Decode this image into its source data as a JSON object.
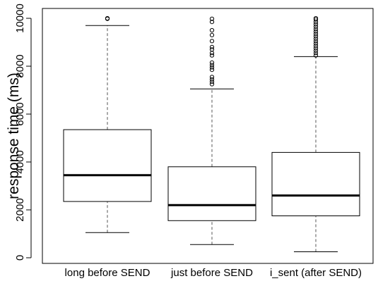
{
  "chart_data": {
    "type": "boxplot",
    "ylabel": "response time (ms)",
    "xlabel": "",
    "ylim": [
      0,
      10000
    ],
    "yticks": [
      0,
      2000,
      4000,
      6000,
      8000,
      10000
    ],
    "categories": [
      "long before SEND",
      "just before SEND",
      "i_sent (after SEND)"
    ],
    "boxes": [
      {
        "name": "long before SEND",
        "whisker_low": 1050,
        "q1": 2350,
        "median": 3450,
        "q3": 5350,
        "whisker_high": 9700,
        "outliers": [
          9980,
          10000
        ]
      },
      {
        "name": "just before SEND",
        "whisker_low": 550,
        "q1": 1550,
        "median": 2200,
        "q3": 3800,
        "whisker_high": 7050,
        "outliers": [
          7250,
          7350,
          7450,
          7550,
          7850,
          7950,
          8050,
          8150,
          8450,
          8550,
          8700,
          8800,
          9050,
          9300,
          9500,
          9850,
          9980
        ]
      },
      {
        "name": "i_sent (after SEND)",
        "whisker_low": 250,
        "q1": 1750,
        "median": 2600,
        "q3": 4400,
        "whisker_high": 8400,
        "outliers": [
          8450,
          8550,
          8650,
          8750,
          8850,
          8950,
          9050,
          9150,
          9250,
          9350,
          9450,
          9550,
          9650,
          9750,
          9850,
          9950,
          10000
        ]
      }
    ]
  },
  "colors": {
    "box_stroke": "#000000",
    "whisker_stroke": "#555555",
    "background": "#ffffff"
  }
}
